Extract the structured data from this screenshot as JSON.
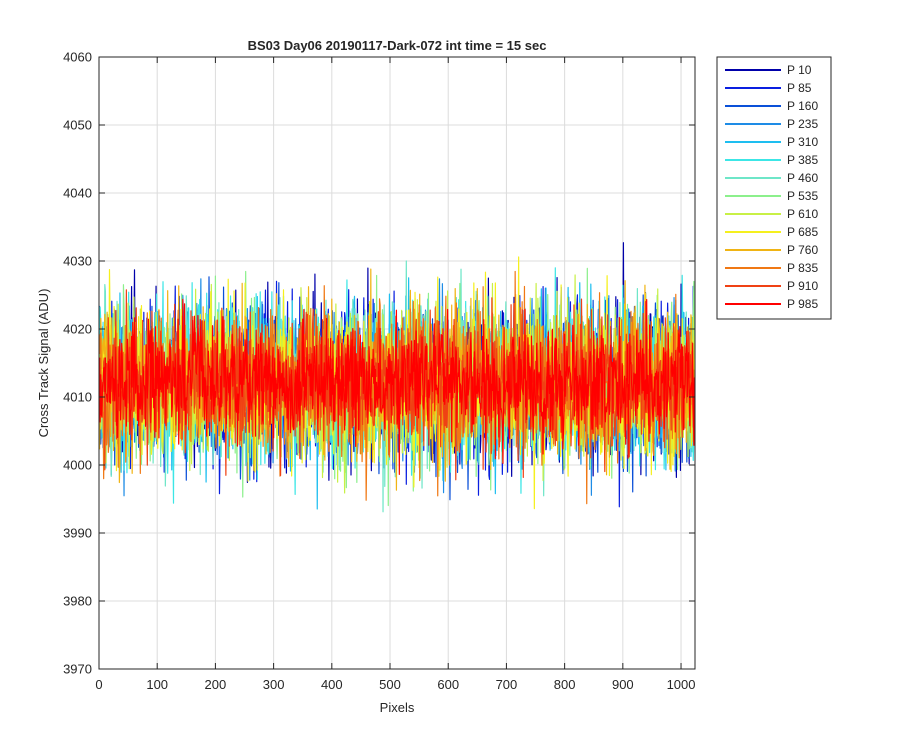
{
  "chart_data": {
    "type": "line",
    "title": "BS03 Day06 20190117-Dark-072 int time = 15 sec",
    "xlabel": "Pixels",
    "ylabel": "Cross Track Signal (ADU)",
    "xlim": [
      0,
      1024
    ],
    "ylim": [
      3970,
      4060
    ],
    "xticks": [
      0,
      100,
      200,
      300,
      400,
      500,
      600,
      700,
      800,
      900,
      1000
    ],
    "yticks": [
      3970,
      3980,
      3990,
      4000,
      4010,
      4020,
      4030,
      4040,
      4050,
      4060
    ],
    "grid": true,
    "legend_placement": "outside-right-top",
    "x_points": 1024,
    "series": [
      {
        "name": "P 10",
        "color": "#0000AA",
        "center": 4012,
        "spread": 9.5,
        "seed": 11
      },
      {
        "name": "P 85",
        "color": "#0A1FE0",
        "center": 4012,
        "spread": 9.5,
        "seed": 23
      },
      {
        "name": "P 160",
        "color": "#0A50D8",
        "center": 4012,
        "spread": 9.0,
        "seed": 37
      },
      {
        "name": "P 235",
        "color": "#1E8CE6",
        "center": 4012,
        "spread": 9.0,
        "seed": 41
      },
      {
        "name": "P 310",
        "color": "#1EBEF0",
        "center": 4012,
        "spread": 9.0,
        "seed": 53
      },
      {
        "name": "P 385",
        "color": "#3CE6E6",
        "center": 4012,
        "spread": 9.0,
        "seed": 67
      },
      {
        "name": "P 460",
        "color": "#6EE6C8",
        "center": 4012,
        "spread": 9.0,
        "seed": 71
      },
      {
        "name": "P 535",
        "color": "#8CF08C",
        "center": 4012,
        "spread": 9.0,
        "seed": 83
      },
      {
        "name": "P 610",
        "color": "#C8F046",
        "center": 4012,
        "spread": 9.0,
        "seed": 97
      },
      {
        "name": "P 685",
        "color": "#F5F01E",
        "center": 4012,
        "spread": 9.0,
        "seed": 101
      },
      {
        "name": "P 760",
        "color": "#F0B414",
        "center": 4012,
        "spread": 8.5,
        "seed": 113
      },
      {
        "name": "P 835",
        "color": "#F07814",
        "center": 4012,
        "spread": 8.5,
        "seed": 127
      },
      {
        "name": "P 910",
        "color": "#F04114",
        "center": 4012,
        "spread": 8.0,
        "seed": 131
      },
      {
        "name": "P 985",
        "color": "#FF0000",
        "center": 4012,
        "spread": 7.0,
        "seed": 149
      }
    ]
  }
}
